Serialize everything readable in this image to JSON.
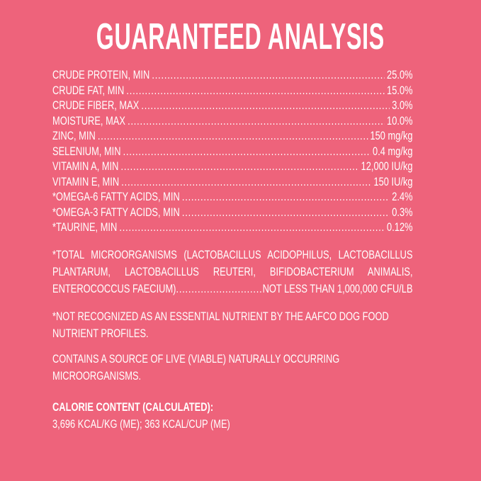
{
  "title": "GUARANTEED ANALYSIS",
  "rows": [
    {
      "label": "CRUDE PROTEIN, MIN",
      "value": "25.0%"
    },
    {
      "label": "CRUDE FAT, MIN",
      "value": "15.0%"
    },
    {
      "label": "CRUDE FIBER, MAX",
      "value": "3.0%"
    },
    {
      "label": "MOISTURE, MAX",
      "value": "10.0%"
    },
    {
      "label": "ZINC, MIN",
      "value": "150 mg/kg"
    },
    {
      "label": "SELENIUM, MIN",
      "value": "0.4 mg/kg"
    },
    {
      "label": "VITAMIN A, MIN",
      "value": "12,000 IU/kg"
    },
    {
      "label": "VITAMIN E, MIN",
      "value": "150 IU/kg"
    },
    {
      "label": "*OMEGA-6 FATTY ACIDS, MIN",
      "value": "2.4%"
    },
    {
      "label": "*OMEGA-3 FATTY ACIDS, MIN",
      "value": "0.3%"
    },
    {
      "label": "*TAURINE, MIN",
      "value": "0.12%"
    }
  ],
  "microorganisms": {
    "text": "*TOTAL MICROORGANISMS (LACTOBACILLUS ACIDOPHILUS, LACTOBACILLUS PLANTARUM, LACTOBACILLUS REUTERI, BIFIDOBACTERIUM ANIMALIS,",
    "last_label": "ENTEROCOCCUS FAECIUM)",
    "value": "NOT LESS THAN 1,000,000 CFU/LB"
  },
  "note": "*NOT RECOGNIZED AS AN ESSENTIAL NUTRIENT BY THE AAFCO DOG FOOD NUTRIENT PROFILES.",
  "live": "CONTAINS A SOURCE OF LIVE (VIABLE) NATURALLY OCCURRING MICROORGANISMS.",
  "calorie": {
    "heading": "CALORIE CONTENT (CALCULATED):",
    "value": "3,696 KCAL/KG (ME); 363 KCAL/CUP (ME)"
  }
}
